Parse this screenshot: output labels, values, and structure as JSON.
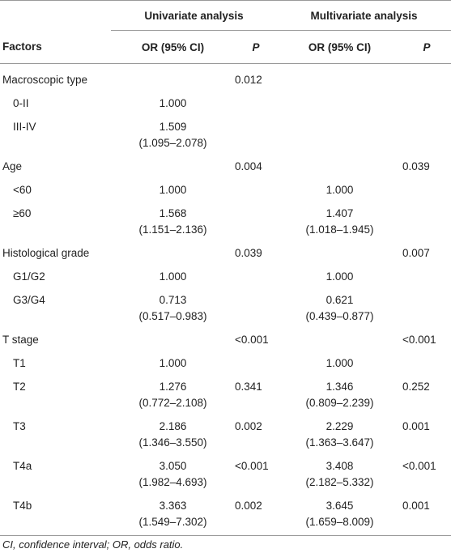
{
  "header": {
    "spanners": [
      "Univariate analysis",
      "Multivariate analysis"
    ],
    "columns": [
      "Factors",
      "OR (95% CI)",
      "P",
      "OR (95% CI)",
      "P"
    ]
  },
  "groups": [
    {
      "label": "Macroscopic type",
      "uni_p": "0.012",
      "items": [
        {
          "label": "0-II",
          "uni_or": "1.000"
        },
        {
          "label": "III-IV",
          "uni_or": "1.509",
          "uni_ci": "(1.095–2.078)"
        }
      ]
    },
    {
      "label": "Age",
      "uni_p": "0.004",
      "multi_p": "0.039",
      "items": [
        {
          "label": "<60",
          "uni_or": "1.000",
          "multi_or": "1.000"
        },
        {
          "label": "≥60",
          "uni_or": "1.568",
          "uni_ci": "(1.151–2.136)",
          "multi_or": "1.407",
          "multi_ci": "(1.018–1.945)"
        }
      ]
    },
    {
      "label": "Histological grade",
      "uni_p": "0.039",
      "multi_p": "0.007",
      "items": [
        {
          "label": "G1/G2",
          "uni_or": "1.000",
          "multi_or": "1.000"
        },
        {
          "label": "G3/G4",
          "uni_or": "0.713",
          "uni_ci": "(0.517–0.983)",
          "multi_or": "0.621",
          "multi_ci": "(0.439–0.877)"
        }
      ]
    },
    {
      "label": "T stage",
      "uni_p": "<0.001",
      "multi_p": "<0.001",
      "items": [
        {
          "label": "T1",
          "uni_or": "1.000",
          "multi_or": "1.000"
        },
        {
          "label": "T2",
          "uni_or": "1.276",
          "uni_ci": "(0.772–2.108)",
          "uni_p": "0.341",
          "multi_or": "1.346",
          "multi_ci": "(0.809–2.239)",
          "multi_p": "0.252"
        },
        {
          "label": "T3",
          "uni_or": "2.186",
          "uni_ci": "(1.346–3.550)",
          "uni_p": "0.002",
          "multi_or": "2.229",
          "multi_ci": "(1.363–3.647)",
          "multi_p": "0.001"
        },
        {
          "label": "T4a",
          "uni_or": "3.050",
          "uni_ci": "(1.982–4.693)",
          "uni_p": "<0.001",
          "multi_or": "3.408",
          "multi_ci": "(2.182–5.332)",
          "multi_p": "<0.001"
        },
        {
          "label": "T4b",
          "uni_or": "3.363",
          "uni_ci": "(1.549–7.302)",
          "uni_p": "0.002",
          "multi_or": "3.645",
          "multi_ci": "(1.659–8.009)",
          "multi_p": "0.001"
        }
      ]
    }
  ],
  "footnote": "CI, confidence interval; OR, odds ratio."
}
